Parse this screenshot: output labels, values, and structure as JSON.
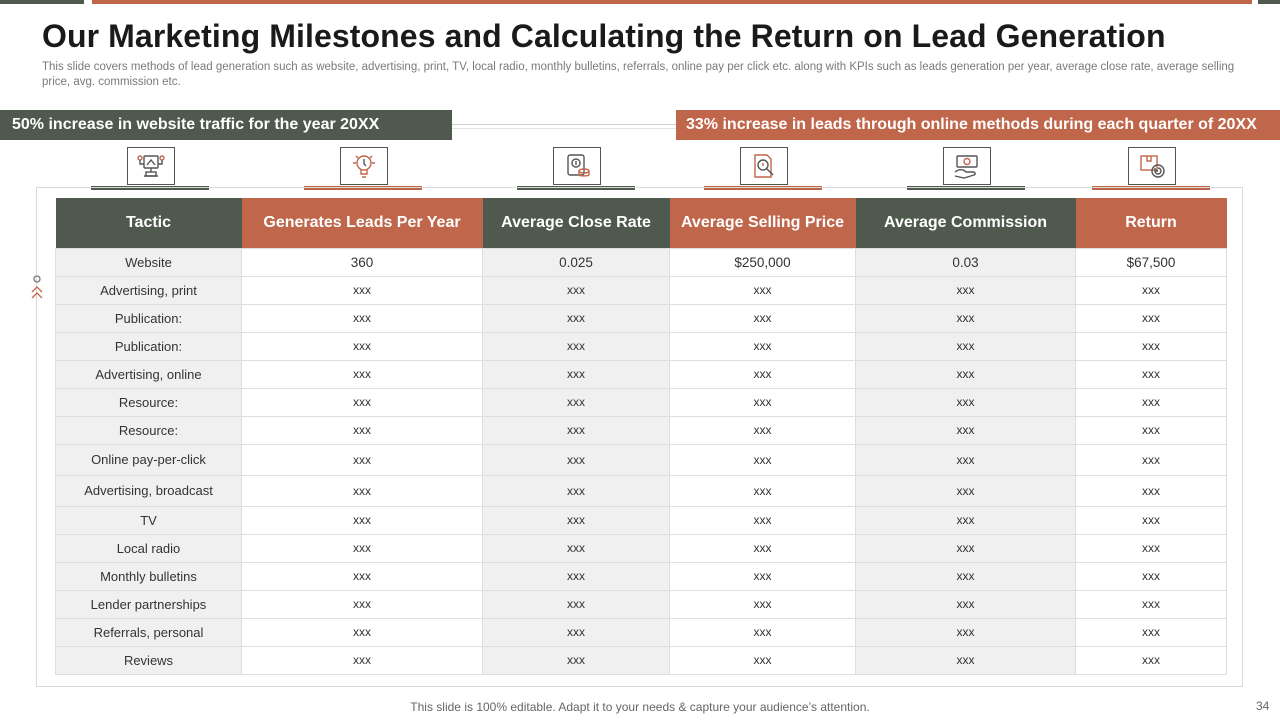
{
  "title": "Our Marketing Milestones and Calculating the Return on Lead Generation",
  "subtitle": "This slide covers methods of lead generation such as website, advertising, print, TV, local radio, monthly bulletins, referrals, online pay per click etc. along with KPIs such as leads generation per year, average close rate, average selling price, avg. commission etc.",
  "banners": {
    "left": "50% increase in website traffic for the year 20XX",
    "right": "33% increase in leads through online methods during each quarter of 20XX"
  },
  "icons": [
    "network-icon",
    "idea-icon",
    "money-device-icon",
    "search-document-icon",
    "cash-hand-icon",
    "box-return-icon"
  ],
  "colors": {
    "dark": "#4f594d",
    "accent": "#c0664b"
  },
  "table": {
    "headers": [
      "Tactic",
      "Generates Leads Per Year",
      "Average Close Rate",
      "Average Selling Price",
      "Average Commission",
      "Return"
    ],
    "rows": [
      [
        "Website",
        "360",
        "0.025",
        "$250,000",
        "0.03",
        "$67,500"
      ],
      [
        "Advertising, print",
        "xxx",
        "xxx",
        "xxx",
        "xxx",
        "xxx"
      ],
      [
        "Publication:",
        "xxx",
        "xxx",
        "xxx",
        "xxx",
        "xxx"
      ],
      [
        "Publication:",
        "xxx",
        "xxx",
        "xxx",
        "xxx",
        "xxx"
      ],
      [
        "Advertising, online",
        "xxx",
        "xxx",
        "xxx",
        "xxx",
        "xxx"
      ],
      [
        "Resource:",
        "xxx",
        "xxx",
        "xxx",
        "xxx",
        "xxx"
      ],
      [
        "Resource:",
        "xxx",
        "xxx",
        "xxx",
        "xxx",
        "xxx"
      ],
      [
        "Online pay-per-click",
        "xxx",
        "xxx",
        "xxx",
        "xxx",
        "xxx"
      ],
      [
        "Advertising, broadcast",
        "xxx",
        "xxx",
        "xxx",
        "xxx",
        "xxx"
      ],
      [
        "TV",
        "xxx",
        "xxx",
        "xxx",
        "xxx",
        "xxx"
      ],
      [
        "Local radio",
        "xxx",
        "xxx",
        "xxx",
        "xxx",
        "xxx"
      ],
      [
        "Monthly bulletins",
        "xxx",
        "xxx",
        "xxx",
        "xxx",
        "xxx"
      ],
      [
        "Lender partnerships",
        "xxx",
        "xxx",
        "xxx",
        "xxx",
        "xxx"
      ],
      [
        "Referrals, personal",
        "xxx",
        "xxx",
        "xxx",
        "xxx",
        "xxx"
      ],
      [
        "Reviews",
        "xxx",
        "xxx",
        "xxx",
        "xxx",
        "xxx"
      ]
    ]
  },
  "footer": "This slide is 100% editable. Adapt it to your needs & capture your audience’s attention.",
  "page_number": "34"
}
